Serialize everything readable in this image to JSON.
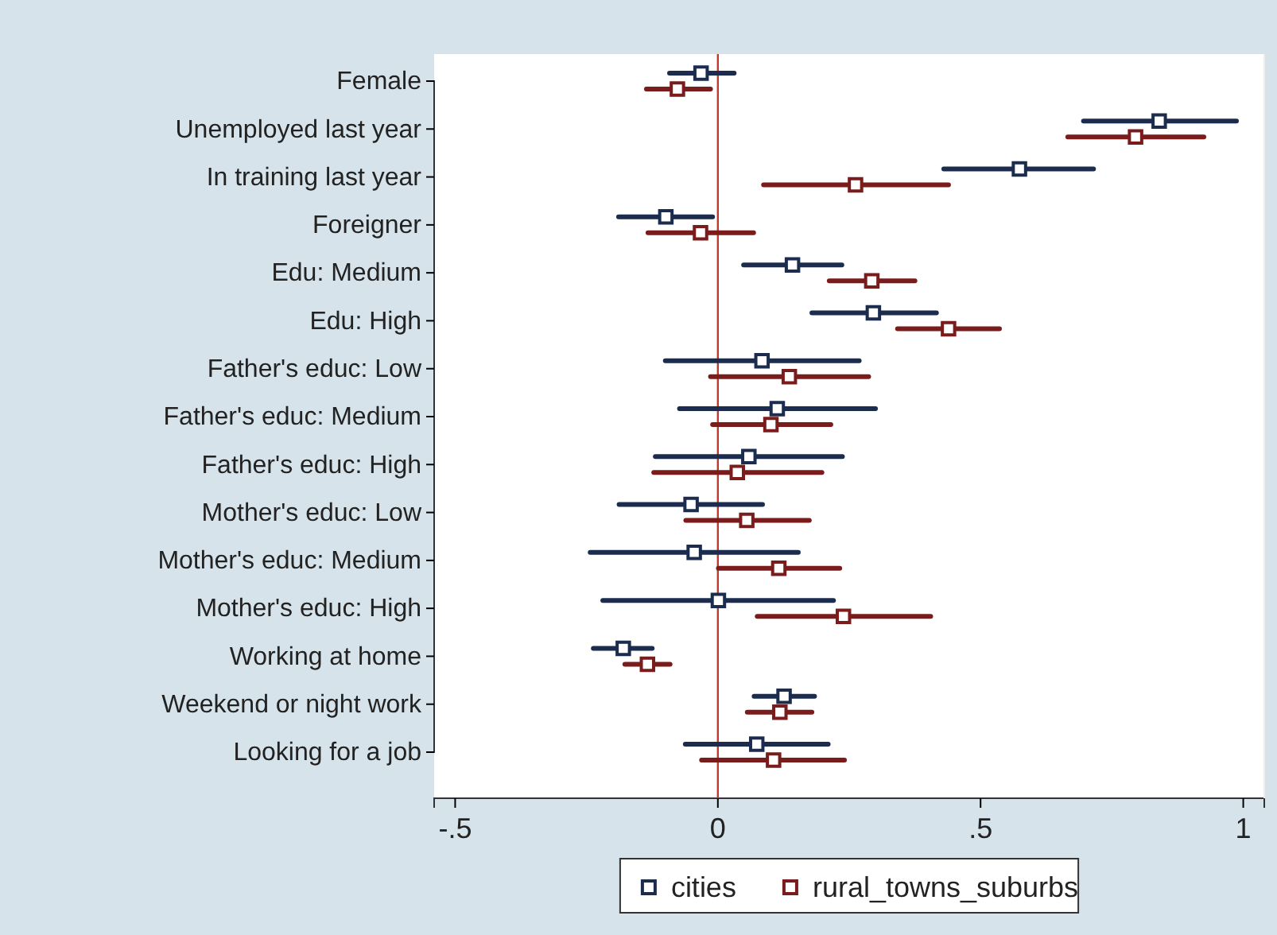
{
  "chart_data": {
    "type": "scatter",
    "orientation": "horizontal",
    "categories": [
      "Female",
      "Unemployed last year",
      "In training last year",
      "Foreigner",
      "Edu: Medium",
      "Edu: High",
      "Father's educ: Low",
      "Father's educ: Medium",
      "Father's educ: High",
      "Mother's educ: Low",
      "Mother's educ: Medium",
      "Mother's educ: High",
      "Working at home",
      "Weekend or night work",
      "Looking for a job"
    ],
    "series": [
      {
        "name": "cities",
        "color": "#1b2c4e",
        "values": [
          -0.032,
          0.84,
          0.574,
          -0.099,
          0.142,
          0.296,
          0.084,
          0.113,
          0.059,
          -0.051,
          -0.045,
          0.001,
          -0.18,
          0.126,
          0.074
        ],
        "errors": [
          [
            -0.092,
            0.031
          ],
          [
            0.696,
            0.987
          ],
          [
            0.43,
            0.715
          ],
          [
            -0.189,
            -0.01
          ],
          [
            0.049,
            0.236
          ],
          [
            0.179,
            0.416
          ],
          [
            -0.1,
            0.269
          ],
          [
            -0.073,
            0.3
          ],
          [
            -0.119,
            0.237
          ],
          [
            -0.188,
            0.085
          ],
          [
            -0.243,
            0.153
          ],
          [
            -0.219,
            0.22
          ],
          [
            -0.237,
            -0.125
          ],
          [
            0.069,
            0.184
          ],
          [
            -0.062,
            0.21
          ]
        ]
      },
      {
        "name": "rural_towns_suburbs",
        "color": "#7b1c1c",
        "values": [
          -0.077,
          0.795,
          0.262,
          -0.033,
          0.293,
          0.439,
          0.136,
          0.101,
          0.037,
          0.055,
          0.116,
          0.239,
          -0.134,
          0.118,
          0.106
        ],
        "errors": [
          [
            -0.136,
            -0.014
          ],
          [
            0.666,
            0.925
          ],
          [
            0.087,
            0.439
          ],
          [
            -0.133,
            0.068
          ],
          [
            0.212,
            0.375
          ],
          [
            0.342,
            0.536
          ],
          [
            -0.014,
            0.287
          ],
          [
            -0.01,
            0.215
          ],
          [
            -0.122,
            0.198
          ],
          [
            -0.061,
            0.174
          ],
          [
            0.001,
            0.232
          ],
          [
            0.075,
            0.405
          ],
          [
            -0.177,
            -0.091
          ],
          [
            0.056,
            0.179
          ],
          [
            -0.031,
            0.241
          ]
        ]
      }
    ],
    "xlim": [
      -0.54,
      1.04
    ],
    "xticks": [
      {
        "value": -0.5,
        "label": "-.5"
      },
      0,
      {
        "value": 0.5,
        "label": ".5"
      },
      1
    ],
    "ref_lines": [
      {
        "axis": "x",
        "value": 0,
        "color": "#c0392b"
      }
    ],
    "marker": "square",
    "legend": "bottom",
    "grid": false
  }
}
